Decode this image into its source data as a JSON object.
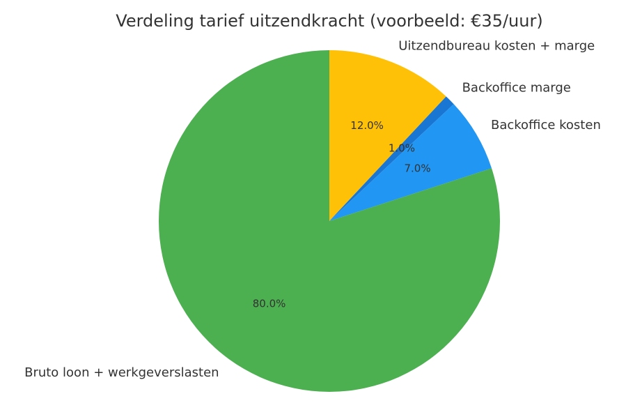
{
  "chart_data": {
    "type": "pie",
    "title": "Verdeling tarief uitzendkracht (voorbeeld: €35/uur)",
    "slices": [
      {
        "label": "Uitzendbureau kosten + marge",
        "value": 12.0,
        "pct_label": "12.0%",
        "color": "#FFC107"
      },
      {
        "label": "Backoffice marge",
        "value": 1.0,
        "pct_label": "1.0%",
        "color": "#1976D2"
      },
      {
        "label": "Backoffice kosten",
        "value": 7.0,
        "pct_label": "7.0%",
        "color": "#2196F3"
      },
      {
        "label": "Bruto loon + werkgeverslasten",
        "value": 80.0,
        "pct_label": "80.0%",
        "color": "#4CAF50"
      }
    ],
    "start_angle": "top",
    "direction": "clockwise",
    "legend": "none"
  }
}
